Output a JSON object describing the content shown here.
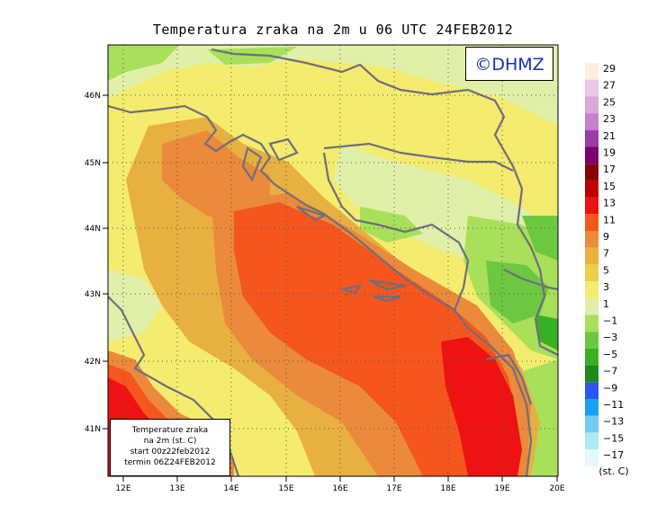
{
  "title": "Temperatura zraka na 2m u 06 UTC 24FEB2012",
  "watermark": "©DHMZ",
  "info_box": {
    "line1": "Temperature zraka",
    "line2": "na 2m (st. C)",
    "line3": "start 00z22feb2012",
    "line4": "termin 06Z24FEB2012"
  },
  "lat_ticks": [
    "46N",
    "45N",
    "44N",
    "43N",
    "42N",
    "41N"
  ],
  "lon_ticks": [
    "12E",
    "13E",
    "14E",
    "15E",
    "16E",
    "17E",
    "18E",
    "19E",
    "20E"
  ],
  "legend": {
    "unit": "(st. C)",
    "labels": [
      "29",
      "27",
      "25",
      "23",
      "21",
      "19",
      "17",
      "15",
      "13",
      "11",
      "9",
      "7",
      "5",
      "3",
      "1",
      "−1",
      "−3",
      "−5",
      "−7",
      "−9",
      "−11",
      "−13",
      "−15",
      "−17"
    ],
    "colors": [
      "#fdeede",
      "#e8c8e2",
      "#dba8dc",
      "#c77fd0",
      "#9c3ca8",
      "#7a0070",
      "#8a0000",
      "#bc0000",
      "#ee1212",
      "#f5561e",
      "#eb8a3a",
      "#e8b040",
      "#ecd048",
      "#f4ec6e",
      "#e0f0a8",
      "#a8e05a",
      "#6cc840",
      "#38b024",
      "#1c8a18",
      "#2e55ee",
      "#18a0f0",
      "#70ccf0",
      "#b0e8f4",
      "#e4f8fc"
    ]
  }
}
